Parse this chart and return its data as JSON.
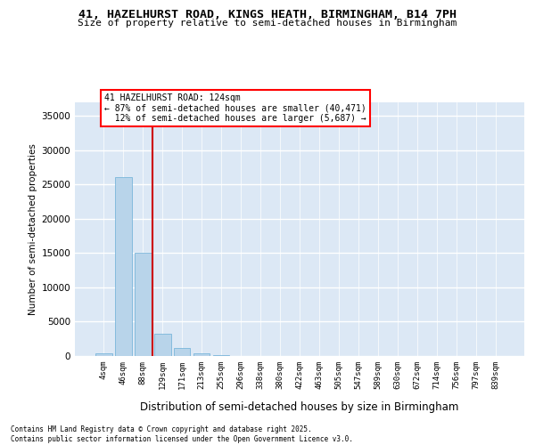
{
  "title_line1": "41, HAZELHURST ROAD, KINGS HEATH, BIRMINGHAM, B14 7PH",
  "title_line2": "Size of property relative to semi-detached houses in Birmingham",
  "xlabel": "Distribution of semi-detached houses by size in Birmingham",
  "ylabel": "Number of semi-detached properties",
  "bar_color": "#b8d4ea",
  "bar_edge_color": "#6aaed6",
  "background_color": "#dce8f5",
  "annotation_text": "41 HAZELHURST ROAD: 124sqm\n← 87% of semi-detached houses are smaller (40,471)\n  12% of semi-detached houses are larger (5,687) →",
  "vline_color": "#cc0000",
  "categories": [
    "4sqm",
    "46sqm",
    "88sqm",
    "129sqm",
    "171sqm",
    "213sqm",
    "255sqm",
    "296sqm",
    "338sqm",
    "380sqm",
    "422sqm",
    "463sqm",
    "505sqm",
    "547sqm",
    "589sqm",
    "630sqm",
    "672sqm",
    "714sqm",
    "756sqm",
    "797sqm",
    "839sqm"
  ],
  "values": [
    350,
    26100,
    15100,
    3200,
    1200,
    400,
    130,
    0,
    0,
    0,
    0,
    0,
    0,
    0,
    0,
    0,
    0,
    0,
    0,
    0,
    0
  ],
  "ylim": [
    0,
    37000
  ],
  "yticks": [
    0,
    5000,
    10000,
    15000,
    20000,
    25000,
    30000,
    35000
  ],
  "footer_text": "Contains HM Land Registry data © Crown copyright and database right 2025.\nContains public sector information licensed under the Open Government Licence v3.0."
}
